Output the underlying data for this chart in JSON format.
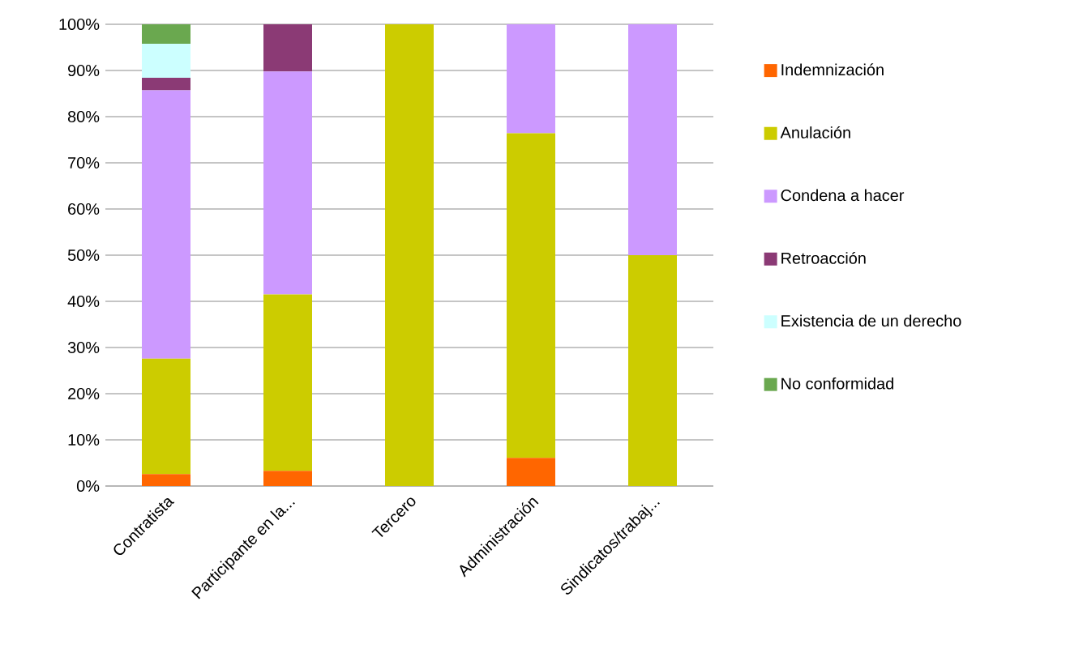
{
  "chart_data": {
    "type": "bar",
    "stacked": true,
    "categories": [
      "Contratista",
      "Participante en la...",
      "Tercero",
      "Administración",
      "Sindicatos/trabaj..."
    ],
    "series": [
      {
        "name": "Indemnización",
        "color": "#ff6600",
        "values": [
          2.6,
          3.3,
          0,
          6.1,
          0
        ]
      },
      {
        "name": "Anulación",
        "color": "#cccc00",
        "values": [
          25,
          38.2,
          100,
          70.3,
          50
        ]
      },
      {
        "name": "Condena a hacer",
        "color": "#cc99ff",
        "values": [
          58.1,
          48.3,
          0,
          23.6,
          50
        ]
      },
      {
        "name": "Retroacción",
        "color": "#8b3a75",
        "values": [
          2.7,
          10.2,
          0,
          0,
          0
        ]
      },
      {
        "name": "Existencia de un derecho",
        "color": "#ccffff",
        "values": [
          7.4,
          0,
          0,
          0,
          0
        ]
      },
      {
        "name": "No conformidad",
        "color": "#6aa84f",
        "values": [
          4.2,
          0,
          0,
          0,
          0
        ]
      }
    ],
    "ylim": [
      0,
      100
    ],
    "yticks": [
      {
        "value": 0,
        "label": "0%"
      },
      {
        "value": 10,
        "label": "10%"
      },
      {
        "value": 20,
        "label": "20%"
      },
      {
        "value": 30,
        "label": "30%"
      },
      {
        "value": 40,
        "label": "40%"
      },
      {
        "value": 50,
        "label": "50%"
      },
      {
        "value": 60,
        "label": "60%"
      },
      {
        "value": 70,
        "label": "70%"
      },
      {
        "value": 80,
        "label": "80%"
      },
      {
        "value": 90,
        "label": "90%"
      },
      {
        "value": 100,
        "label": "100%"
      }
    ],
    "grid": true,
    "legend": "right"
  }
}
